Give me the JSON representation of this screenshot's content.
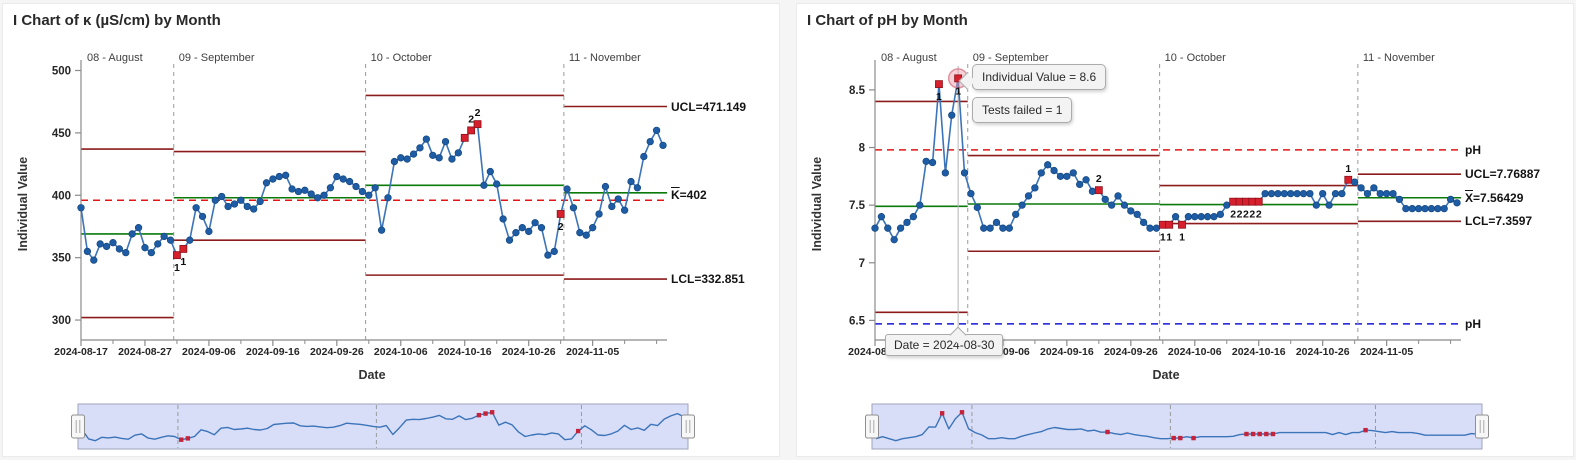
{
  "colors": {
    "series": "#3c74b9",
    "marker": "#1e5da6",
    "marker_edge": "#14477e",
    "flag": "#d6202e",
    "flag_edge": "#8e1018",
    "limit": "#8c1c1c",
    "center": "#0a7a0a",
    "ref_red": "#e31414",
    "ref_blue": "#1616d9",
    "divider": "#9a9a9a",
    "axis": "#8b8b8b",
    "tick_text": "#262626",
    "stage_text": "#404040",
    "flag_text": "#101010",
    "crosshair": "#b5b5b5",
    "halo_fill": "rgba(233,150,163,0.45)",
    "halo_stroke": "rgba(210,100,120,0.65)",
    "scrub_bg": "#d9def8",
    "scrub_border": "#9fa4bd",
    "scrub_line": "#3c74b9",
    "scrub_flag": "#c4233b",
    "handle_fill": "#f7f7f7",
    "handle_edge": "#8f8f8f"
  },
  "chart_data": [
    {
      "type": "line",
      "title": "I Chart of κ (µS/cm) by Month",
      "ylabel": "Individual Value",
      "xlabel": "Date",
      "ylim": [
        284,
        502
      ],
      "yticks": [
        {
          "v": 500,
          "label": "500"
        },
        {
          "v": 450,
          "label": "450"
        },
        {
          "v": 400,
          "label": "400"
        },
        {
          "v": 350,
          "label": "350"
        },
        {
          "v": 300,
          "label": "300"
        }
      ],
      "xticks": [
        {
          "i": 0,
          "label": "2024-08-17"
        },
        {
          "i": 10,
          "label": "2024-08-27"
        },
        {
          "i": 20,
          "label": "2024-09-06"
        },
        {
          "i": 30,
          "label": "2024-09-16"
        },
        {
          "i": 40,
          "label": "2024-09-26"
        },
        {
          "i": 50,
          "label": "2024-10-06"
        },
        {
          "i": 60,
          "label": "2024-10-16"
        },
        {
          "i": 70,
          "label": "2024-10-26"
        },
        {
          "i": 80,
          "label": "2024-11-05"
        }
      ],
      "stages": [
        {
          "label": "08 - August",
          "ucl": 437,
          "cl": 369,
          "lcl": 302,
          "count": 15
        },
        {
          "label": "09 - September",
          "ucl": 435,
          "cl": 398,
          "lcl": 364,
          "count": 30
        },
        {
          "label": "10 - October",
          "ucl": 480,
          "cl": 408,
          "lcl": 336,
          "count": 31
        },
        {
          "label": "11 - November",
          "ucl": 471.149,
          "cl": 402,
          "lcl": 332.851,
          "count": 16
        }
      ],
      "values": [
        390,
        355,
        348,
        361,
        359,
        362,
        357,
        354,
        369,
        374,
        358,
        354,
        361,
        367,
        364,
        352,
        357,
        364,
        390,
        383,
        371,
        396,
        399,
        391,
        393,
        396,
        391,
        389,
        395,
        410,
        413,
        415,
        416,
        405,
        403,
        404,
        401,
        398,
        400,
        406,
        415,
        413,
        411,
        407,
        403,
        400,
        406,
        372,
        398,
        427,
        430,
        429,
        433,
        438,
        445,
        432,
        430,
        443,
        429,
        434,
        446,
        452,
        457,
        408,
        419,
        409,
        381,
        364,
        370,
        374,
        371,
        378,
        374,
        352,
        355,
        385,
        405,
        390,
        370,
        368,
        374,
        385,
        407,
        391,
        397,
        388,
        411,
        406,
        431,
        443,
        452,
        440
      ],
      "flags": [
        {
          "i": 15,
          "label": "1",
          "pos": "below"
        },
        {
          "i": 16,
          "label": "1",
          "pos": "below"
        },
        {
          "i": 60
        },
        {
          "i": 61,
          "label": "2",
          "pos": "above"
        },
        {
          "i": 62,
          "label": "2",
          "pos": "above"
        },
        {
          "i": 75,
          "label": "2",
          "pos": "below"
        }
      ],
      "ref_lines": [
        {
          "v": 396,
          "color": "red"
        }
      ],
      "side_labels": [
        {
          "v": 471.1,
          "text": "UCL=471.149"
        },
        {
          "v": 400,
          "prefix": "Κ",
          "text": "=402"
        },
        {
          "v": 332.9,
          "text": "LCL=332.851"
        }
      ]
    },
    {
      "type": "line",
      "title": "I Chart of pH by Month",
      "ylabel": "Individual Value",
      "xlabel": "Date",
      "ylim": [
        6.33,
        8.69
      ],
      "yticks": [
        {
          "v": 8.5,
          "label": "8.5"
        },
        {
          "v": 8.0,
          "label": "8"
        },
        {
          "v": 7.5,
          "label": "7.5"
        },
        {
          "v": 7.0,
          "label": "7"
        },
        {
          "v": 6.5,
          "label": "6.5"
        }
      ],
      "xticks": [
        {
          "i": 0,
          "label": "2024-08-17"
        },
        {
          "i": 10,
          "label": "2024-08-27"
        },
        {
          "i": 20,
          "label": "2024-09-06"
        },
        {
          "i": 30,
          "label": "2024-09-16"
        },
        {
          "i": 40,
          "label": "2024-09-26"
        },
        {
          "i": 50,
          "label": "2024-10-06"
        },
        {
          "i": 60,
          "label": "2024-10-16"
        },
        {
          "i": 70,
          "label": "2024-10-26"
        },
        {
          "i": 80,
          "label": "2024-11-05"
        }
      ],
      "stages": [
        {
          "label": "08 - August",
          "ucl": 8.4,
          "cl": 7.49,
          "lcl": 6.57,
          "count": 15
        },
        {
          "label": "09 - September",
          "ucl": 7.93,
          "cl": 7.51,
          "lcl": 7.1,
          "count": 30
        },
        {
          "label": "10 - October",
          "ucl": 7.67,
          "cl": 7.505,
          "lcl": 7.34,
          "count": 31
        },
        {
          "label": "11 - November",
          "ucl": 7.76887,
          "cl": 7.56429,
          "lcl": 7.3597,
          "count": 16
        }
      ],
      "values": [
        7.3,
        7.4,
        7.3,
        7.2,
        7.3,
        7.35,
        7.4,
        7.5,
        7.88,
        7.87,
        8.55,
        7.78,
        8.28,
        8.6,
        7.78,
        7.6,
        7.48,
        7.3,
        7.3,
        7.35,
        7.3,
        7.3,
        7.42,
        7.5,
        7.58,
        7.65,
        7.78,
        7.85,
        7.8,
        7.75,
        7.75,
        7.78,
        7.68,
        7.72,
        7.62,
        7.63,
        7.55,
        7.5,
        7.58,
        7.5,
        7.45,
        7.42,
        7.35,
        7.3,
        7.3,
        7.33,
        7.33,
        7.4,
        7.33,
        7.4,
        7.4,
        7.4,
        7.4,
        7.4,
        7.42,
        7.5,
        7.53,
        7.53,
        7.53,
        7.53,
        7.53,
        7.6,
        7.6,
        7.6,
        7.6,
        7.6,
        7.6,
        7.6,
        7.6,
        7.5,
        7.6,
        7.5,
        7.6,
        7.6,
        7.72,
        7.7,
        7.65,
        7.6,
        7.65,
        7.6,
        7.6,
        7.6,
        7.55,
        7.47,
        7.47,
        7.47,
        7.47,
        7.47,
        7.47,
        7.47,
        7.55,
        7.52
      ],
      "flags": [
        {
          "i": 10,
          "label": "1",
          "pos": "below"
        },
        {
          "i": 13,
          "label": "1",
          "pos": "below",
          "selected": true
        },
        {
          "i": 35,
          "label": "2",
          "pos": "above"
        },
        {
          "i": 45,
          "label": "1",
          "pos": "below"
        },
        {
          "i": 46,
          "label": "1",
          "pos": "below"
        },
        {
          "i": 48,
          "label": "1",
          "pos": "below"
        },
        {
          "i": 56,
          "label": "2",
          "pos": "below"
        },
        {
          "i": 57,
          "label": "2",
          "pos": "below"
        },
        {
          "i": 58,
          "label": "2",
          "pos": "below"
        },
        {
          "i": 59,
          "label": "2",
          "pos": "below"
        },
        {
          "i": 60,
          "label": "2",
          "pos": "below"
        },
        {
          "i": 74,
          "label": "1",
          "pos": "above"
        }
      ],
      "ref_lines": [
        {
          "v": 7.98,
          "color": "red"
        },
        {
          "v": 6.47,
          "color": "blue"
        }
      ],
      "side_labels": [
        {
          "v": 7.98,
          "text": "pH"
        },
        {
          "v": 7.769,
          "text": "UCL=7.76887"
        },
        {
          "v": 7.564,
          "prefix": "X",
          "text": "=7.56429"
        },
        {
          "v": 7.36,
          "text": "LCL=7.3597"
        },
        {
          "v": 6.47,
          "text": "pH"
        }
      ],
      "selected": {
        "i": 13
      },
      "tooltip": {
        "line1": "Individual Value = 8.6",
        "line2": "Tests failed = 1",
        "date": "Date = 2024-08-30"
      }
    }
  ]
}
